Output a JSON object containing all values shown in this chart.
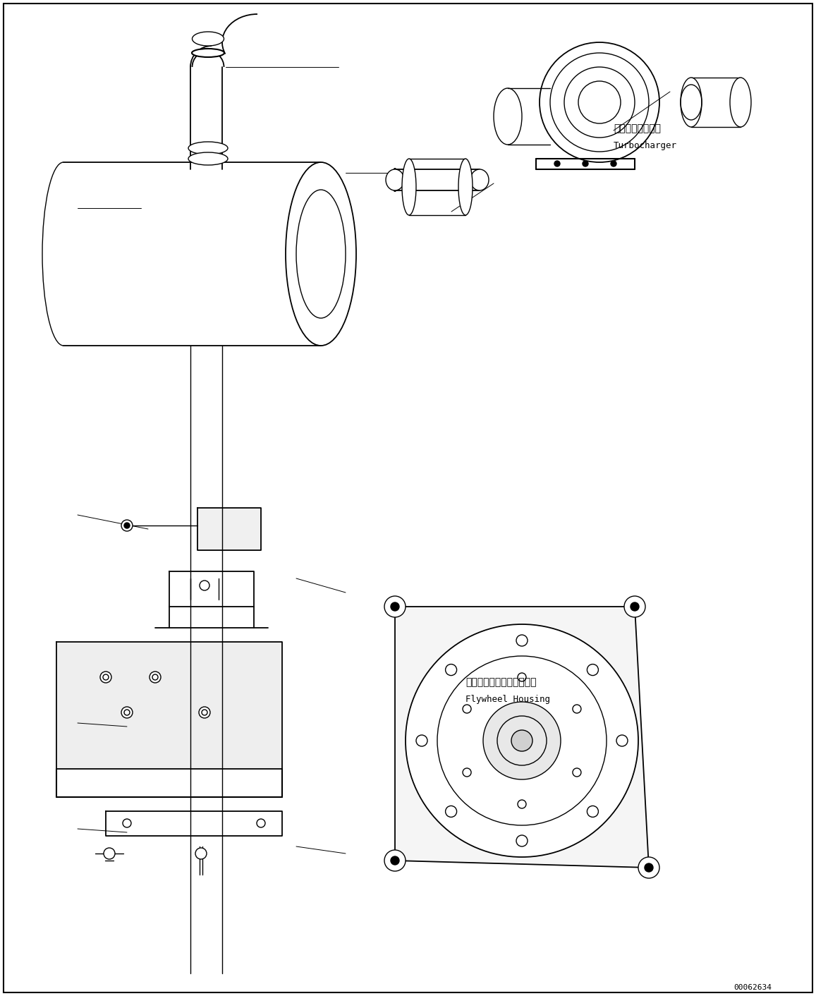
{
  "fig_width": 11.57,
  "fig_height": 14.12,
  "dpi": 100,
  "bg_color": "#ffffff",
  "line_color": "#000000",
  "line_width": 1.0,
  "title_jp": "ターボチャージャ",
  "title_en": "Turbocharger",
  "flywheel_jp": "フライホイールハウジング",
  "flywheel_en": "Flywheel Housing",
  "part_number": "00062634",
  "label_fontsize": 9,
  "annotation_fontsize": 8
}
